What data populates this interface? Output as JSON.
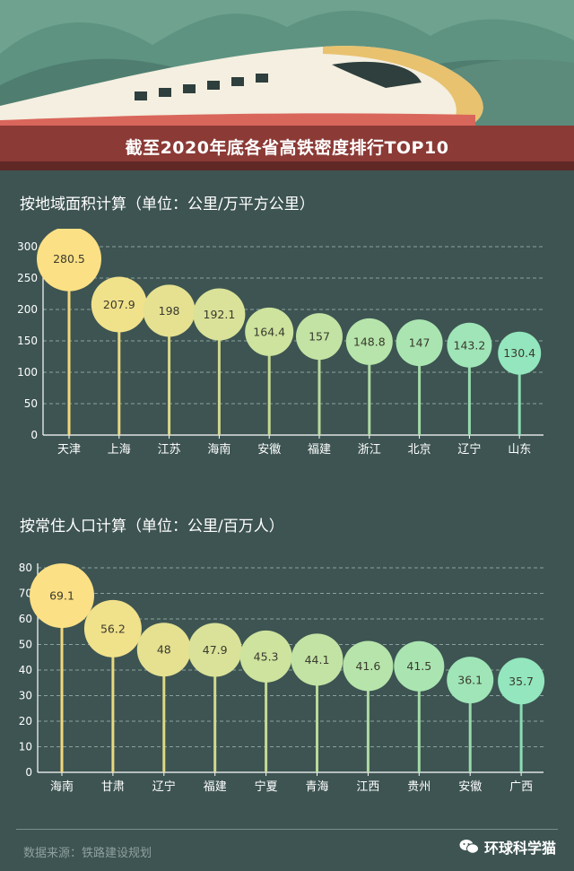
{
  "title": "截至2020年底各省高铁密度排行TOP10",
  "colors": {
    "background": "#3d5452",
    "gradient_start": "#fce085",
    "gradient_end": "#93e6bd",
    "stem_start": "#f3d77a",
    "stem_end": "#8ddcb5"
  },
  "chart_data": [
    {
      "type": "lollipop",
      "title": "按地域面积计算（单位：公里/万平方公里）",
      "categories": [
        "天津",
        "上海",
        "江苏",
        "海南",
        "安徽",
        "福建",
        "浙江",
        "北京",
        "辽宁",
        "山东"
      ],
      "values": [
        280.5,
        207.9,
        198,
        192.1,
        164.4,
        157,
        148.8,
        147,
        143.2,
        130.4
      ],
      "value_labels": [
        "280.5",
        "207.9",
        "198",
        "192.1",
        "164.4",
        "157",
        "148.8",
        "147",
        "143.2",
        "130.4"
      ],
      "ylim": [
        0,
        300
      ],
      "yticks": [
        "0",
        "50",
        "100",
        "150",
        "200",
        "250",
        "300"
      ],
      "grid": true
    },
    {
      "type": "lollipop",
      "title": "按常住人口计算（单位：公里/百万人）",
      "categories": [
        "海南",
        "甘肃",
        "辽宁",
        "福建",
        "宁夏",
        "青海",
        "江西",
        "贵州",
        "安徽",
        "广西"
      ],
      "values": [
        69.1,
        56.2,
        48,
        47.9,
        45.3,
        44.1,
        41.6,
        41.5,
        36.1,
        35.7
      ],
      "value_labels": [
        "69.1",
        "56.2",
        "48",
        "47.9",
        "45.3",
        "44.1",
        "41.6",
        "41.5",
        "36.1",
        "35.7"
      ],
      "ylim": [
        0,
        80
      ],
      "yticks": [
        "0",
        "10",
        "20",
        "30",
        "40",
        "50",
        "60",
        "70",
        "80"
      ],
      "grid": true
    }
  ],
  "footer": {
    "source": "数据来源：铁路建设规划",
    "brand": "环球科学猫",
    "brand_icon": "wechat-chat-icon"
  }
}
